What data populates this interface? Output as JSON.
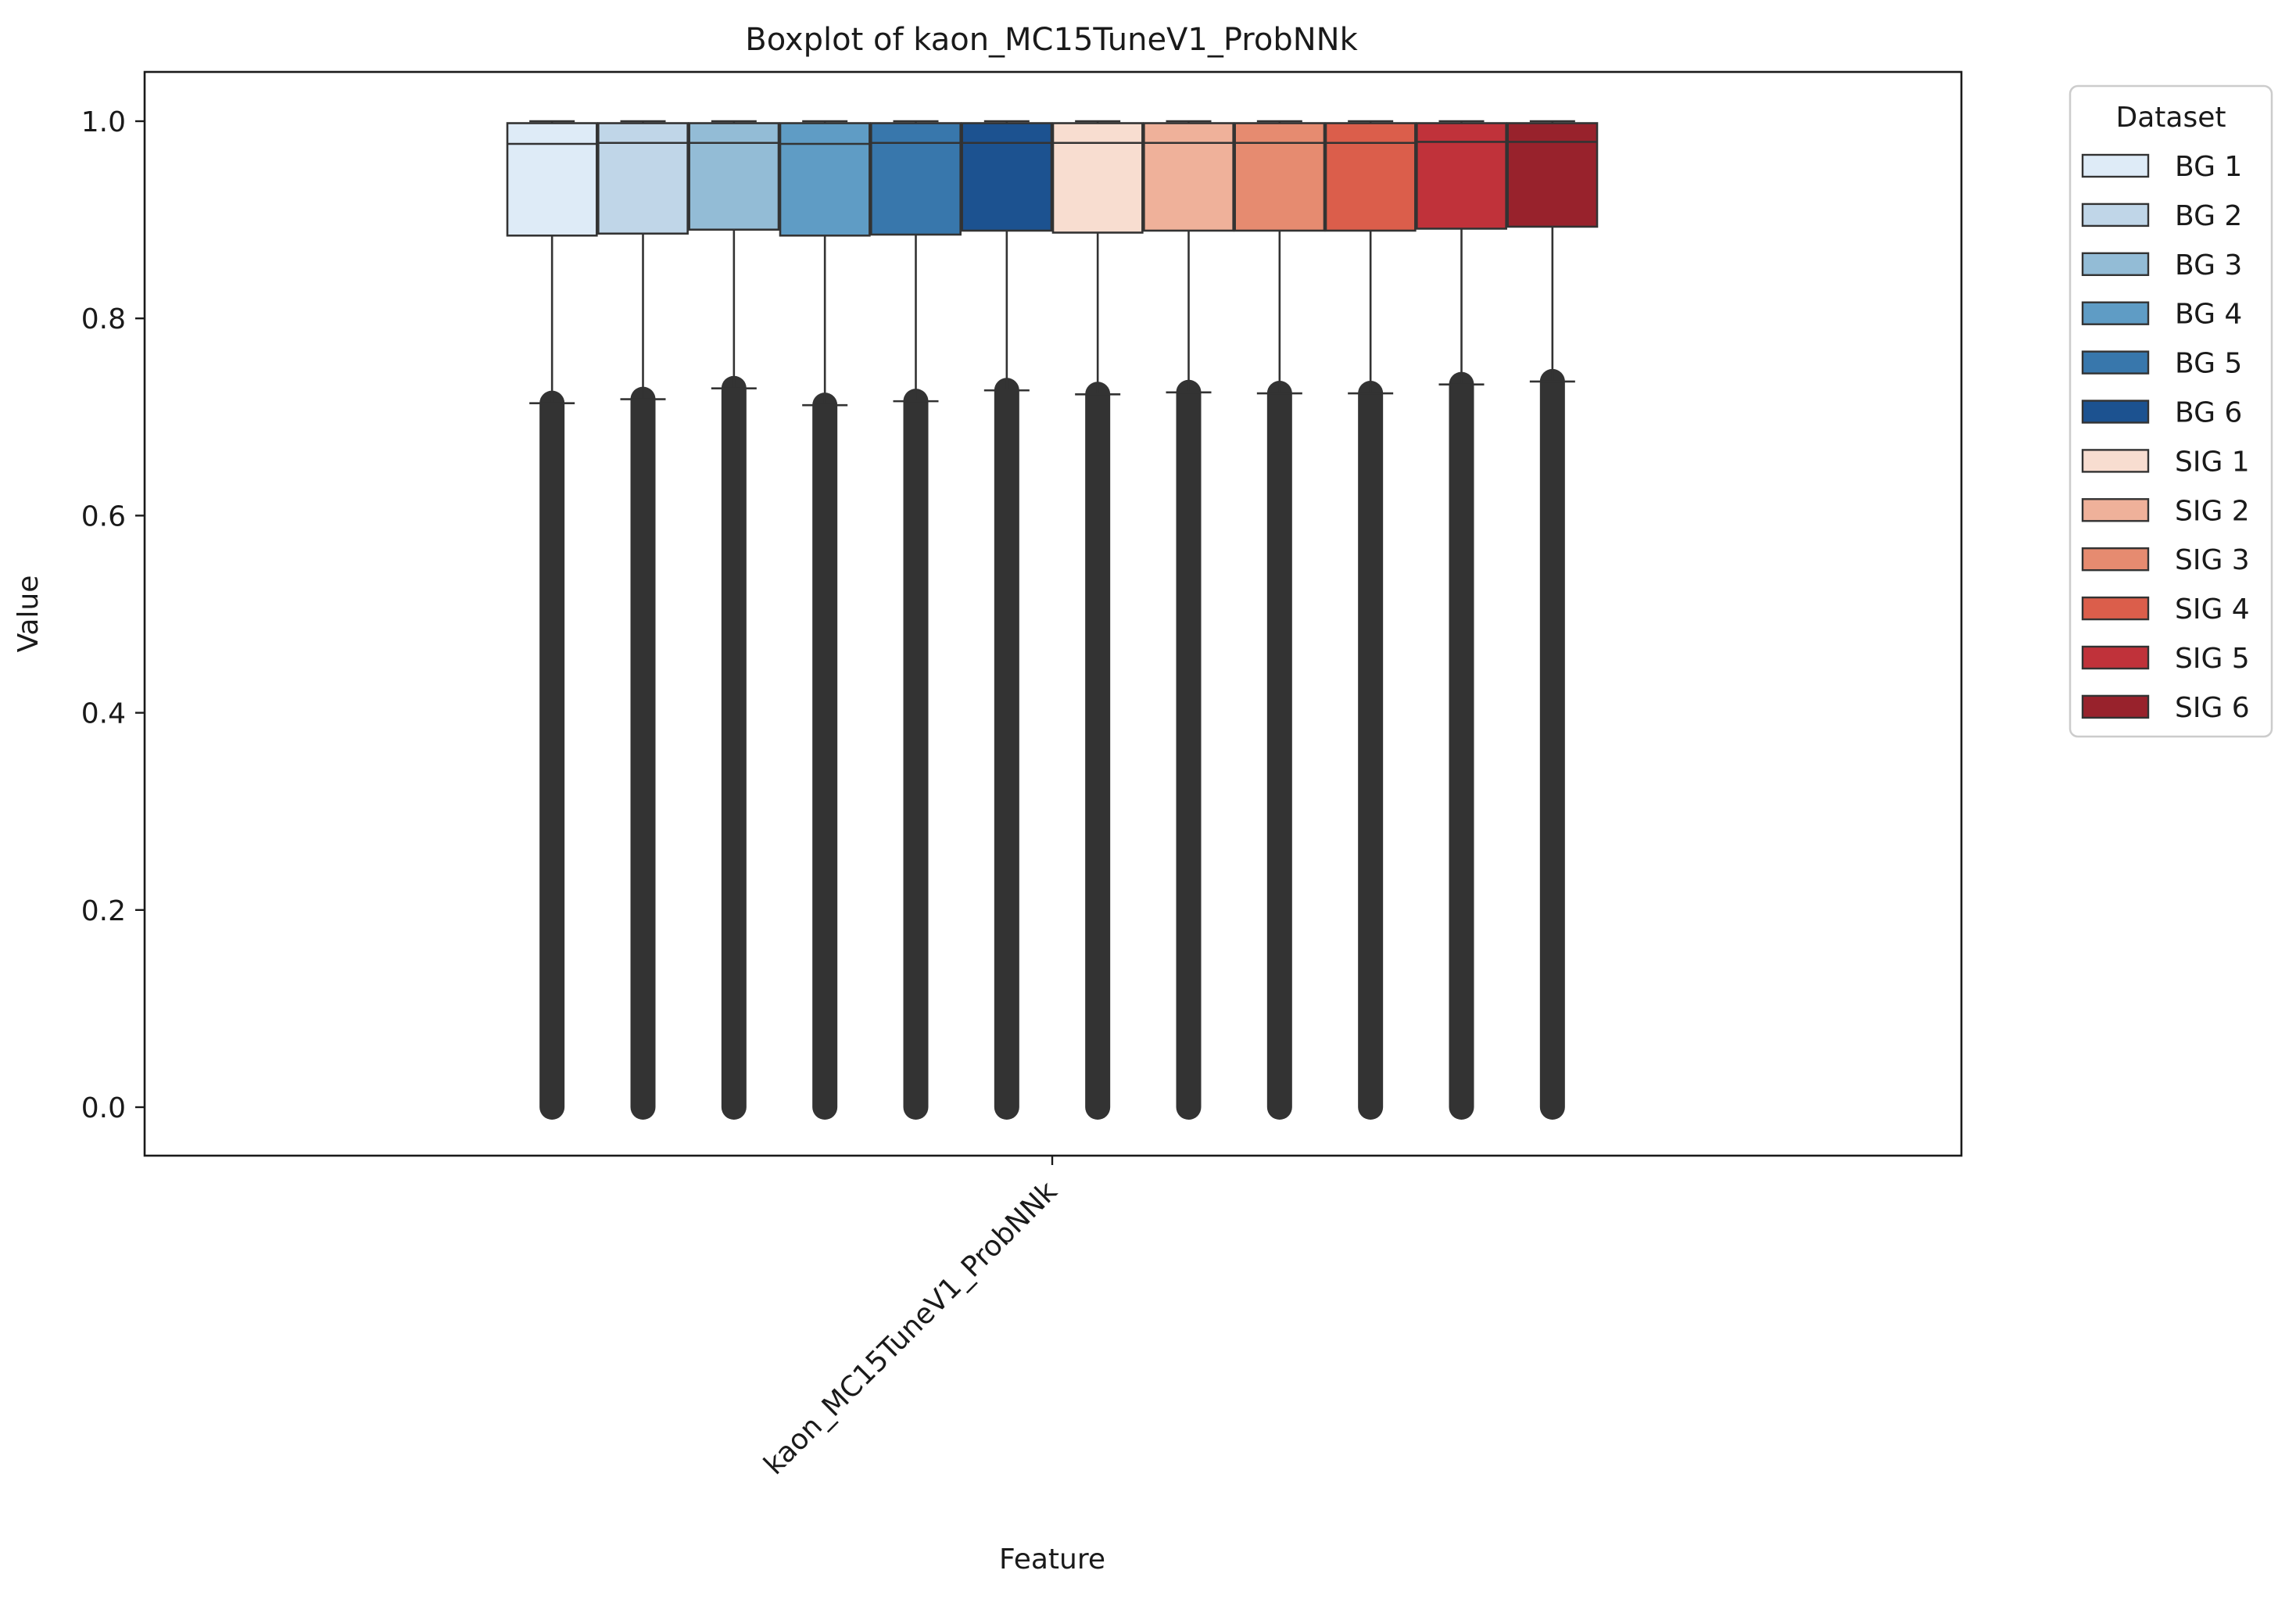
{
  "chart_data": {
    "type": "box",
    "title": "Boxplot of kaon_MC15TuneV1_ProbNNk",
    "xlabel": "Feature",
    "ylabel": "Value",
    "categories": [
      "kaon_MC15TuneV1_ProbNNk"
    ],
    "ylim": [
      -0.05,
      1.05
    ],
    "yticks": [
      0.0,
      0.2,
      0.4,
      0.6,
      0.8,
      1.0
    ],
    "ytick_labels": [
      "0.0",
      "0.2",
      "0.4",
      "0.6",
      "0.8",
      "1.0"
    ],
    "grid": false,
    "legend_title": "Dataset",
    "legend_position": "outside-top-right",
    "series": [
      {
        "name": "BG 1",
        "color": "#deebf7",
        "q1": 0.884,
        "median": 0.977,
        "q3": 0.998,
        "whisker_low": 0.714,
        "whisker_high": 1.0,
        "outliers_from": 0.0,
        "outliers_to": 0.714
      },
      {
        "name": "BG 2",
        "color": "#c0d6e8",
        "q1": 0.886,
        "median": 0.978,
        "q3": 0.998,
        "whisker_low": 0.718,
        "whisker_high": 1.0,
        "outliers_from": 0.0,
        "outliers_to": 0.718
      },
      {
        "name": "BG 3",
        "color": "#93bcd6",
        "q1": 0.89,
        "median": 0.978,
        "q3": 0.998,
        "whisker_low": 0.729,
        "whisker_high": 1.0,
        "outliers_from": 0.0,
        "outliers_to": 0.729
      },
      {
        "name": "BG 4",
        "color": "#5f9cc5",
        "q1": 0.884,
        "median": 0.977,
        "q3": 0.998,
        "whisker_low": 0.712,
        "whisker_high": 1.0,
        "outliers_from": 0.0,
        "outliers_to": 0.712
      },
      {
        "name": "BG 5",
        "color": "#3877ac",
        "q1": 0.885,
        "median": 0.978,
        "q3": 0.998,
        "whisker_low": 0.716,
        "whisker_high": 1.0,
        "outliers_from": 0.0,
        "outliers_to": 0.716
      },
      {
        "name": "BG 6",
        "color": "#1c5290",
        "q1": 0.889,
        "median": 0.978,
        "q3": 0.998,
        "whisker_low": 0.727,
        "whisker_high": 1.0,
        "outliers_from": 0.0,
        "outliers_to": 0.727
      },
      {
        "name": "SIG 1",
        "color": "#f8ddd0",
        "q1": 0.887,
        "median": 0.978,
        "q3": 0.998,
        "whisker_low": 0.723,
        "whisker_high": 1.0,
        "outliers_from": 0.0,
        "outliers_to": 0.723
      },
      {
        "name": "SIG 2",
        "color": "#efb19a",
        "q1": 0.889,
        "median": 0.978,
        "q3": 0.998,
        "whisker_low": 0.725,
        "whisker_high": 1.0,
        "outliers_from": 0.0,
        "outliers_to": 0.725
      },
      {
        "name": "SIG 3",
        "color": "#e68b70",
        "q1": 0.889,
        "median": 0.978,
        "q3": 0.998,
        "whisker_low": 0.724,
        "whisker_high": 1.0,
        "outliers_from": 0.0,
        "outliers_to": 0.724
      },
      {
        "name": "SIG 4",
        "color": "#db5e4b",
        "q1": 0.889,
        "median": 0.978,
        "q3": 0.998,
        "whisker_low": 0.724,
        "whisker_high": 1.0,
        "outliers_from": 0.0,
        "outliers_to": 0.724
      },
      {
        "name": "SIG 5",
        "color": "#c0323a",
        "q1": 0.891,
        "median": 0.979,
        "q3": 0.998,
        "whisker_low": 0.733,
        "whisker_high": 1.0,
        "outliers_from": 0.0,
        "outliers_to": 0.733
      },
      {
        "name": "SIG 6",
        "color": "#98222c",
        "q1": 0.893,
        "median": 0.979,
        "q3": 0.998,
        "whisker_low": 0.736,
        "whisker_high": 1.0,
        "outliers_from": 0.0,
        "outliers_to": 0.736
      }
    ]
  }
}
